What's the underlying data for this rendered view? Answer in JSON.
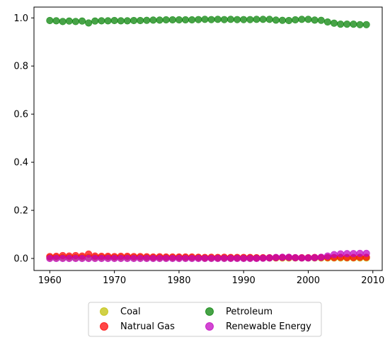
{
  "chart_data": {
    "type": "scatter",
    "x": [
      1960,
      1961,
      1962,
      1963,
      1964,
      1965,
      1966,
      1967,
      1968,
      1969,
      1970,
      1971,
      1972,
      1973,
      1974,
      1975,
      1976,
      1977,
      1978,
      1979,
      1980,
      1981,
      1982,
      1983,
      1984,
      1985,
      1986,
      1987,
      1988,
      1989,
      1990,
      1991,
      1992,
      1993,
      1994,
      1995,
      1996,
      1997,
      1998,
      1999,
      2000,
      2001,
      2002,
      2003,
      2004,
      2005,
      2006,
      2007,
      2008,
      2009
    ],
    "series": [
      {
        "name": "Coal",
        "color": "#bfbf00",
        "values": [
          0.004,
          0.004,
          0.004,
          0.004,
          0.004,
          0.004,
          0.004,
          0.004,
          0.004,
          0.004,
          0.004,
          0.004,
          0.004,
          0.004,
          0.004,
          0.003,
          0.003,
          0.003,
          0.003,
          0.003,
          0.003,
          0.003,
          0.003,
          0.003,
          0.002,
          0.002,
          0.002,
          0.002,
          0.002,
          0.002,
          0.002,
          0.002,
          0.002,
          0.002,
          0.002,
          0.002,
          0.002,
          0.002,
          0.002,
          0.002,
          0.002,
          0.002,
          0.002,
          0.002,
          0.002,
          0.002,
          0.002,
          0.002,
          0.002,
          0.002
        ]
      },
      {
        "name": "Natrual Gas",
        "color": "#ff0000",
        "values": [
          0.008,
          0.009,
          0.012,
          0.01,
          0.012,
          0.01,
          0.018,
          0.01,
          0.009,
          0.009,
          0.008,
          0.009,
          0.009,
          0.008,
          0.008,
          0.007,
          0.006,
          0.007,
          0.006,
          0.006,
          0.006,
          0.006,
          0.006,
          0.005,
          0.004,
          0.005,
          0.004,
          0.005,
          0.004,
          0.004,
          0.004,
          0.004,
          0.003,
          0.003,
          0.003,
          0.003,
          0.004,
          0.004,
          0.003,
          0.003,
          0.003,
          0.004,
          0.004,
          0.004,
          0.004,
          0.005,
          0.004,
          0.004,
          0.005,
          0.005
        ]
      },
      {
        "name": "Petroleum",
        "color": "#008000",
        "values": [
          0.989,
          0.988,
          0.985,
          0.987,
          0.985,
          0.987,
          0.979,
          0.987,
          0.988,
          0.988,
          0.989,
          0.988,
          0.988,
          0.989,
          0.989,
          0.99,
          0.991,
          0.991,
          0.992,
          0.992,
          0.992,
          0.992,
          0.992,
          0.993,
          0.994,
          0.993,
          0.994,
          0.993,
          0.994,
          0.993,
          0.993,
          0.993,
          0.994,
          0.994,
          0.994,
          0.991,
          0.99,
          0.989,
          0.992,
          0.994,
          0.994,
          0.991,
          0.99,
          0.983,
          0.978,
          0.974,
          0.974,
          0.974,
          0.972,
          0.972
        ]
      },
      {
        "name": "Renewable Energy",
        "color": "#c000c0",
        "values": [
          0.0,
          0.0,
          0.0,
          0.0,
          0.0,
          0.0,
          0.0,
          0.0,
          0.0,
          0.0,
          0.0,
          0.0,
          0.0,
          0.0,
          0.0,
          0.0,
          0.0,
          0.0,
          0.0,
          0.0,
          0.0,
          0.0,
          0.0,
          0.0,
          0.0,
          0.0,
          0.0,
          0.0,
          0.0,
          0.0,
          0.0,
          0.0,
          0.0,
          0.001,
          0.002,
          0.004,
          0.005,
          0.005,
          0.003,
          0.002,
          0.002,
          0.003,
          0.005,
          0.01,
          0.016,
          0.019,
          0.02,
          0.02,
          0.021,
          0.021
        ]
      }
    ],
    "xlim": [
      1957.55,
      2011.45
    ],
    "ylim": [
      -0.05,
      1.045
    ],
    "xticks": [
      "1960",
      "1970",
      "1980",
      "1990",
      "2000",
      "2010"
    ],
    "yticks": [
      "0.0",
      "0.2",
      "0.4",
      "0.6",
      "0.8",
      "1.0"
    ],
    "grid": false,
    "legend_position": "bottom-center"
  }
}
